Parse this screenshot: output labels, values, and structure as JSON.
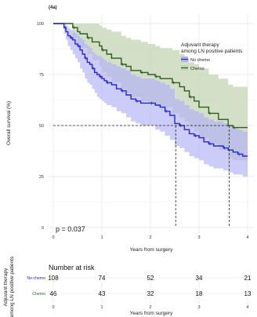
{
  "panel_label": "(4a)",
  "colors": {
    "no_chemo": "#2626dd",
    "no_chemo_band": "#b0b0f6",
    "chemo": "#2d5d1b",
    "chemo_band": "#c4d6b4",
    "overlap_band": "#9aa3c8",
    "grid": "#e4e4e4",
    "axis_text": "#333333"
  },
  "pvalue": "p = 0.037",
  "risk_table": {
    "title": "Number at risk",
    "ylabel": "Adjuvant therapy\namong LN positive patients",
    "xlabel": "Years from surgery",
    "x_ticks": [
      "0",
      "1",
      "2",
      "3",
      "4"
    ],
    "rows": [
      {
        "label": "No chemo",
        "values": [
          "108",
          "74",
          "52",
          "34",
          "21"
        ],
        "color": "#2626dd"
      },
      {
        "label": "Chemo",
        "values": [
          "46",
          "43",
          "32",
          "18",
          "13"
        ],
        "color": "#2d5d1b"
      }
    ]
  },
  "chart_data": {
    "type": "line",
    "title": "",
    "xlabel": "Years from surgery",
    "ylabel": "Overall survival (%)",
    "xlim": [
      0,
      4
    ],
    "ylim": [
      0,
      100
    ],
    "x_ticks": [
      0,
      1,
      2,
      3,
      4
    ],
    "y_ticks": [
      0,
      25,
      50,
      75,
      100
    ],
    "grid": true,
    "legend": {
      "title": "Adjuvant therapy\namong LN positive patients",
      "position": "top-right",
      "entries": [
        "No chemo",
        "Chemo"
      ]
    },
    "median_survival": {
      "No chemo": 2.52,
      "Chemo": 3.62
    },
    "median_level": 50,
    "series": [
      {
        "name": "No chemo",
        "step": true,
        "x": [
          0,
          0.2,
          0.22,
          0.26,
          0.3,
          0.35,
          0.4,
          0.45,
          0.5,
          0.55,
          0.6,
          0.65,
          0.7,
          0.75,
          0.8,
          0.85,
          0.9,
          0.95,
          1.0,
          1.05,
          1.1,
          1.2,
          1.3,
          1.4,
          1.5,
          1.6,
          1.7,
          1.8,
          1.9,
          2.0,
          2.1,
          2.2,
          2.3,
          2.4,
          2.5,
          2.6,
          2.7,
          2.8,
          2.9,
          3.0,
          3.1,
          3.2,
          3.3,
          3.4,
          3.5,
          3.6,
          3.7,
          3.8,
          3.9,
          4.0
        ],
        "y": [
          100,
          100,
          98,
          96,
          94,
          93,
          92,
          90,
          89,
          87,
          85,
          83,
          81,
          80,
          78,
          76,
          75,
          74,
          73,
          72,
          71,
          70,
          68,
          67,
          65,
          63,
          62,
          61,
          61,
          61,
          60,
          59,
          57,
          55,
          51,
          50,
          48,
          46,
          45,
          44,
          42,
          41,
          40,
          40,
          39,
          38,
          37,
          36,
          35,
          35
        ],
        "lower": [
          100,
          100,
          95,
          92,
          89,
          87,
          85,
          83,
          81,
          78,
          76,
          73,
          71,
          70,
          68,
          66,
          64,
          63,
          62,
          61,
          60,
          59,
          57,
          56,
          54,
          52,
          51,
          50,
          50,
          50,
          48,
          47,
          45,
          43,
          40,
          39,
          37,
          35,
          34,
          33,
          31,
          30,
          29,
          29,
          28,
          27,
          26,
          26,
          25,
          25
        ],
        "upper": [
          100,
          100,
          100,
          99,
          98,
          97,
          96,
          95,
          94,
          93,
          92,
          90,
          89,
          88,
          86,
          85,
          84,
          84,
          83,
          82,
          81,
          80,
          79,
          78,
          77,
          75,
          74,
          73,
          73,
          73,
          72,
          71,
          70,
          68,
          63,
          62,
          60,
          58,
          57,
          56,
          54,
          53,
          52,
          52,
          51,
          50,
          49,
          48,
          47,
          47
        ]
      },
      {
        "name": "Chemo",
        "step": true,
        "x": [
          0,
          0.3,
          0.4,
          0.5,
          0.55,
          0.7,
          0.8,
          0.95,
          1.0,
          1.1,
          1.2,
          1.4,
          1.5,
          1.6,
          1.8,
          1.95,
          2.0,
          2.1,
          2.2,
          2.3,
          2.45,
          2.6,
          2.7,
          2.8,
          2.9,
          3.0,
          3.2,
          3.4,
          3.6,
          3.7,
          4.0
        ],
        "y": [
          100,
          100,
          98,
          96,
          95,
          93,
          91,
          89,
          87,
          85,
          83,
          80,
          79,
          77,
          76,
          75,
          75,
          74,
          73,
          73,
          71,
          69,
          67,
          64,
          62,
          59,
          56,
          53,
          50,
          49,
          49
        ],
        "lower": [
          100,
          100,
          93,
          90,
          88,
          85,
          82,
          79,
          76,
          74,
          71,
          68,
          66,
          64,
          62,
          61,
          61,
          60,
          59,
          59,
          56,
          54,
          52,
          49,
          47,
          44,
          41,
          38,
          34,
          33,
          33
        ],
        "upper": [
          100,
          100,
          100,
          100,
          100,
          100,
          100,
          99,
          98,
          97,
          96,
          94,
          93,
          92,
          91,
          90,
          90,
          89,
          88,
          88,
          87,
          85,
          83,
          81,
          80,
          78,
          75,
          73,
          70,
          69,
          69
        ]
      }
    ]
  }
}
